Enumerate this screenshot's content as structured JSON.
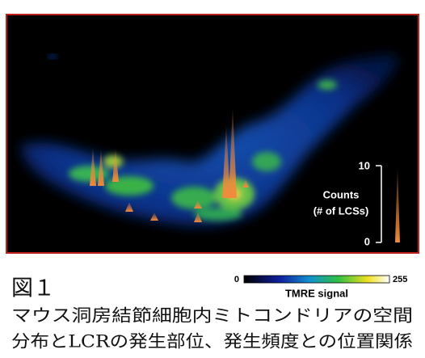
{
  "figure": {
    "counts_label": "Counts",
    "counts_unit": "(# of LCSs)",
    "counts_ticks": [
      10,
      0
    ],
    "colorbar_min": 0,
    "colorbar_max": 255,
    "colorbar_label": "TMRE signal",
    "figure_label": "図１",
    "caption": [
      "マウス洞房結節細胞内ミトコンドリアの空間",
      "分布とLCRの発生部位、発生頻度との位置関係"
    ]
  }
}
